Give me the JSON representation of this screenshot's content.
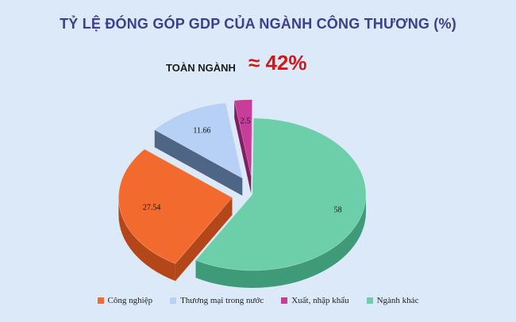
{
  "title": "TỶ LỆ ĐÓNG GÓP GDP CỦA NGÀNH CÔNG THƯƠNG (%)",
  "total": {
    "label": "TOÀN NGÀNH",
    "value": "≈ 42%"
  },
  "chart_data": {
    "type": "pie",
    "style": "3d-exploded",
    "legend_position": "bottom",
    "series": [
      {
        "name": "Công nghiệp",
        "value": 27.54,
        "label": "27.54",
        "color": "#f26a2e",
        "side_color": "#b4471a",
        "exploded": true
      },
      {
        "name": "Thương mại trong nước",
        "value": 11.66,
        "label": "11.66",
        "color": "#b7d0f5",
        "side_color": "#4f6585",
        "exploded": true
      },
      {
        "name": "Xuất, nhập khẩu",
        "value": 2.5,
        "label": "2.5",
        "color": "#c83c9a",
        "side_color": "#7d1f60",
        "exploded": true
      },
      {
        "name": "Ngành khác",
        "value": 58,
        "label": "58",
        "color": "#6ccfaa",
        "side_color": "#3f9a79",
        "exploded": false
      }
    ]
  }
}
